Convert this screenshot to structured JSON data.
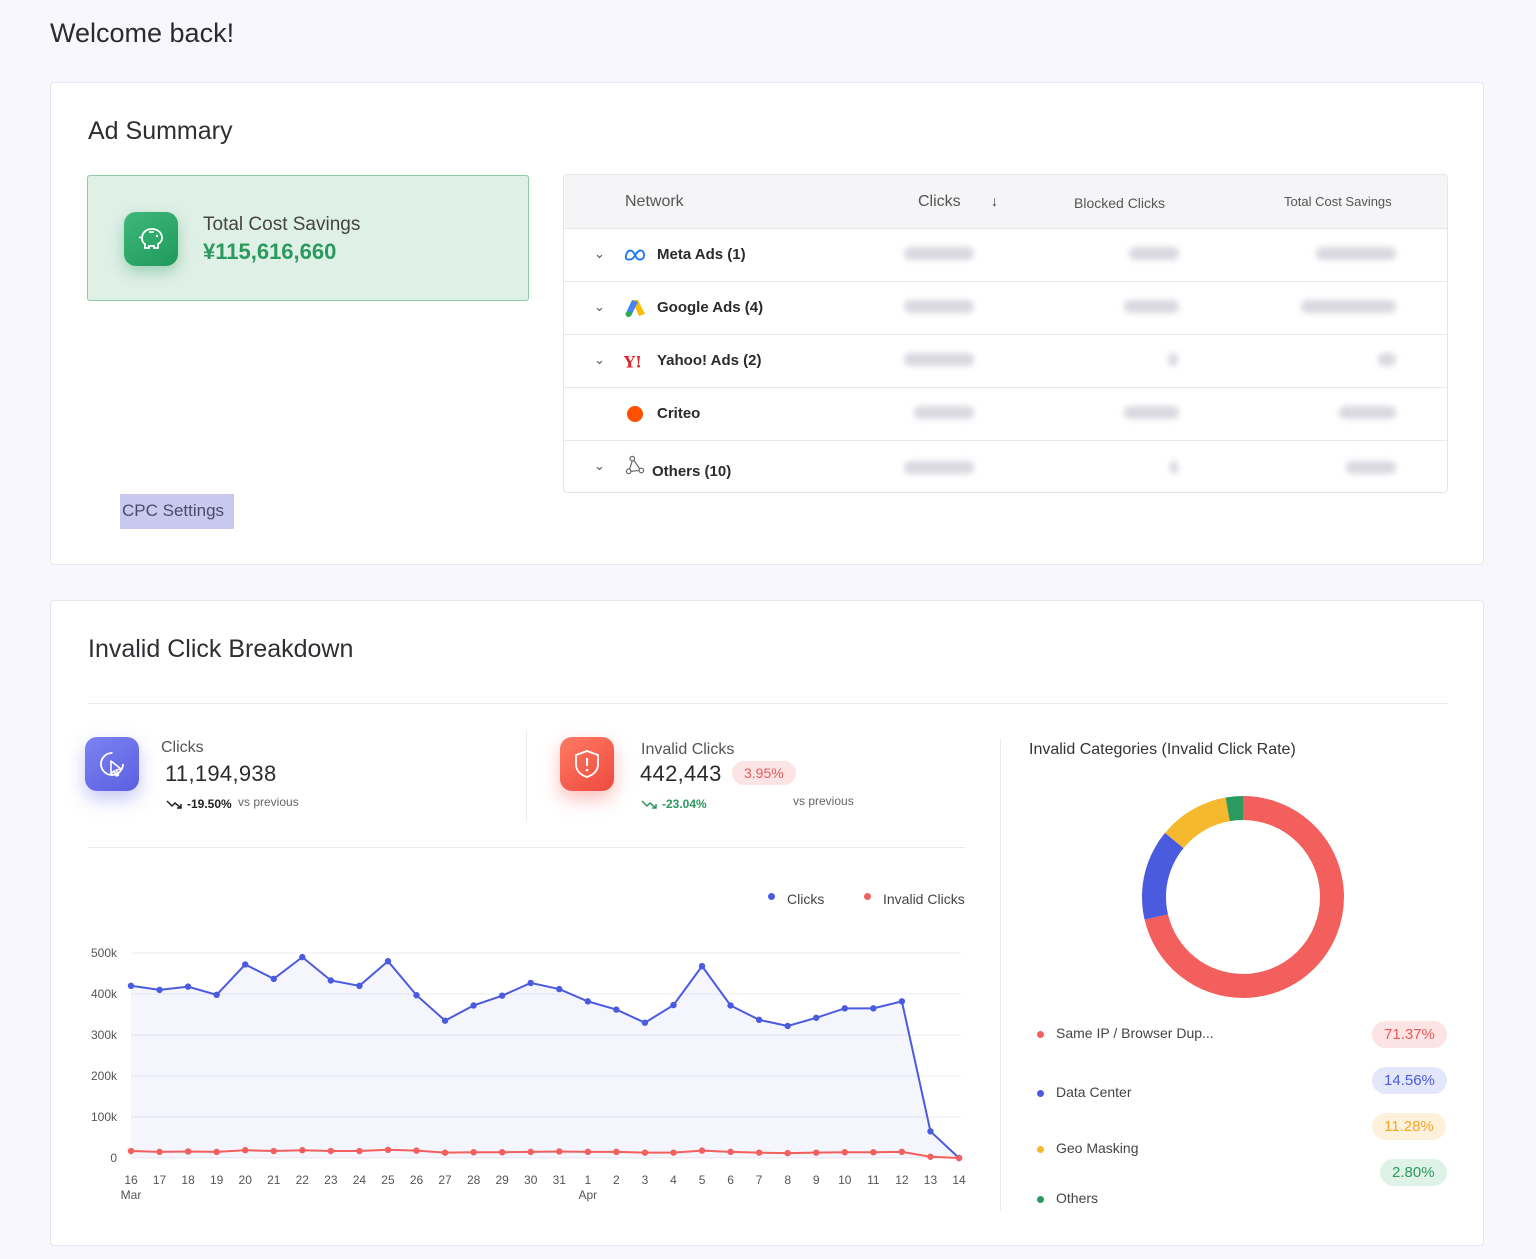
{
  "welcome": "Welcome back!",
  "ad_summary": {
    "title": "Ad Summary",
    "savings_label": "Total Cost Savings",
    "savings_value": "¥115,616,660",
    "cpc_button": "CPC Settings",
    "table": {
      "headers": {
        "network": "Network",
        "clicks": "Clicks",
        "sort_icon": "↓",
        "blocked": "Blocked Clicks",
        "savings": "Total Cost Savings"
      },
      "rows": [
        {
          "name": "Meta Ads (1)",
          "expandable": true,
          "logo": "meta-logo-icon"
        },
        {
          "name": "Google Ads (4)",
          "expandable": true,
          "logo": "google-ads-logo-icon"
        },
        {
          "name": "Yahoo! Ads (2)",
          "expandable": true,
          "logo": "yahoo-logo-icon"
        },
        {
          "name": "Criteo",
          "expandable": false,
          "logo": "criteo-logo-icon"
        },
        {
          "name": "Others (10)",
          "expandable": true,
          "logo": "network-nodes-icon"
        }
      ]
    }
  },
  "breakdown": {
    "title": "Invalid Click Breakdown",
    "clicks": {
      "label": "Clicks",
      "value": "11,194,938",
      "change": "-19.50%",
      "vs": "vs previous"
    },
    "invalid": {
      "label": "Invalid Clicks",
      "value": "442,443",
      "rate": "3.95%",
      "change": "-23.04%",
      "vs": "vs previous"
    },
    "categories_title": "Invalid Categories (Invalid Click Rate)",
    "categories": [
      {
        "name": "Same IP / Browser Dup...",
        "pct": "71.37%",
        "value": 71.37,
        "color": "#f25f5c",
        "bg": "#fde4e4"
      },
      {
        "name": "Data Center",
        "pct": "14.56%",
        "value": 14.56,
        "color": "#4a5be0",
        "bg": "#e4e6fb"
      },
      {
        "name": "Geo Masking",
        "pct": "11.28%",
        "value": 11.28,
        "color": "#f5b82e",
        "bg": "#fdf1dc"
      },
      {
        "name": "Others",
        "pct": "2.80%",
        "value": 2.8,
        "color": "#2a9a5e",
        "bg": "#dff2e7"
      }
    ]
  },
  "chart_data": {
    "type": "line",
    "legend": [
      "Clicks",
      "Invalid Clicks"
    ],
    "legend_position": "top-right",
    "colors": {
      "clicks": "#4a5be0",
      "invalid": "#f25f5c"
    },
    "x": [
      "16",
      "17",
      "18",
      "19",
      "20",
      "21",
      "22",
      "23",
      "24",
      "25",
      "26",
      "27",
      "28",
      "29",
      "30",
      "31",
      "1",
      "2",
      "3",
      "4",
      "5",
      "6",
      "7",
      "8",
      "9",
      "10",
      "11",
      "12",
      "13",
      "14"
    ],
    "x_month_labels": [
      {
        "index": 0,
        "label": "Mar"
      },
      {
        "index": 16,
        "label": "Apr"
      }
    ],
    "y_ticks": [
      "0",
      "100k",
      "200k",
      "300k",
      "400k",
      "500k"
    ],
    "ylim": [
      0,
      500000
    ],
    "grid": true,
    "series": [
      {
        "name": "Clicks",
        "values": [
          420000,
          410000,
          418000,
          398000,
          472000,
          437000,
          490000,
          433000,
          420000,
          480000,
          397000,
          335000,
          372000,
          396000,
          427000,
          412000,
          382000,
          362000,
          330000,
          373000,
          468000,
          372000,
          337000,
          322000,
          342000,
          365000,
          365000,
          382000,
          65000,
          0
        ]
      },
      {
        "name": "Invalid Clicks",
        "values": [
          17000,
          15000,
          16000,
          15000,
          19000,
          17000,
          19000,
          17000,
          17000,
          20000,
          18000,
          13000,
          14000,
          14000,
          15000,
          16000,
          15000,
          15000,
          13000,
          13000,
          18000,
          15000,
          13000,
          12000,
          13000,
          14000,
          14000,
          15000,
          3000,
          0
        ]
      }
    ]
  }
}
